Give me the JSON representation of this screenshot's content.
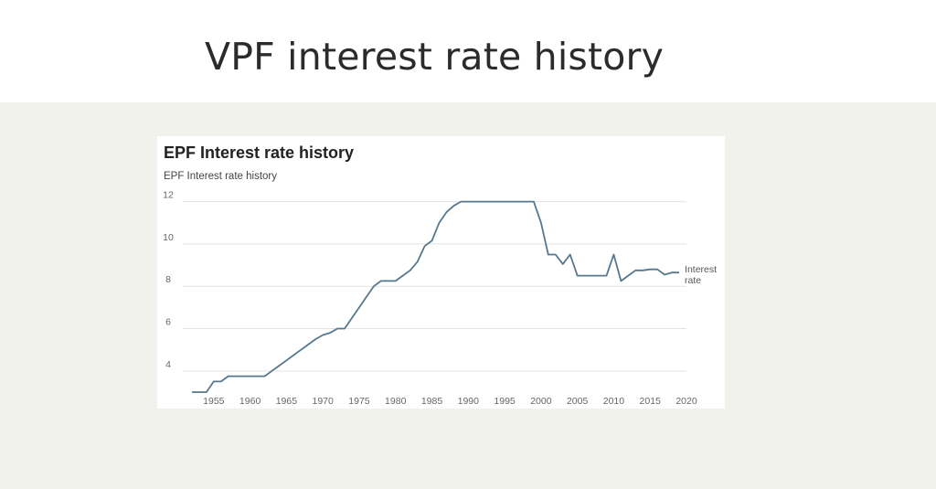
{
  "page": {
    "title": "VPF interest rate history"
  },
  "colors": {
    "line": "#56788e",
    "grid": "#e3e3e3",
    "lower_background": "#f2f2ec"
  },
  "chart_data": {
    "type": "line",
    "title": "EPF Interest rate history",
    "subtitle": "EPF Interest rate history",
    "xlabel": "",
    "ylabel": "",
    "xlim": [
      1951,
      2020
    ],
    "ylim": [
      3,
      12.5
    ],
    "x_ticks": [
      "1955",
      "1960",
      "1965",
      "1970",
      "1975",
      "1980",
      "1985",
      "1990",
      "1995",
      "2000",
      "2005",
      "2010",
      "2015",
      "2020"
    ],
    "y_ticks": [
      "4",
      "6",
      "8",
      "10",
      "12"
    ],
    "grid": true,
    "legend_placement": "end-of-line",
    "series": [
      {
        "name": "Interest rate",
        "x": [
          1952,
          1954,
          1955,
          1956,
          1957,
          1958,
          1959,
          1960,
          1961,
          1962,
          1963,
          1964,
          1965,
          1966,
          1967,
          1968,
          1969,
          1970,
          1971,
          1972,
          1973,
          1974,
          1975,
          1976,
          1977,
          1978,
          1979,
          1980,
          1981,
          1982,
          1983,
          1984,
          1985,
          1986,
          1987,
          1988,
          1989,
          1990,
          1991,
          1992,
          1993,
          1994,
          1995,
          1996,
          1997,
          1998,
          1999,
          2000,
          2001,
          2002,
          2003,
          2004,
          2005,
          2006,
          2007,
          2008,
          2009,
          2010,
          2011,
          2012,
          2013,
          2014,
          2015,
          2016,
          2017,
          2018,
          2019
        ],
        "values": [
          3,
          3,
          3.5,
          3.5,
          3.75,
          3.75,
          3.75,
          3.75,
          3.75,
          3.75,
          4,
          4.25,
          4.5,
          4.75,
          5,
          5.25,
          5.5,
          5.7,
          5.8,
          6,
          6,
          6.5,
          7,
          7.5,
          8,
          8.25,
          8.25,
          8.25,
          8.5,
          8.75,
          9.15,
          9.9,
          10.15,
          11,
          11.5,
          11.8,
          12,
          12,
          12,
          12,
          12,
          12,
          12,
          12,
          12,
          12,
          12,
          11,
          9.5,
          9.5,
          9.05,
          9.5,
          8.5,
          8.5,
          8.5,
          8.5,
          8.5,
          9.5,
          8.25,
          8.5,
          8.75,
          8.75,
          8.8,
          8.8,
          8.55,
          8.65,
          8.65
        ]
      }
    ]
  },
  "legend": {
    "line1": "Interest",
    "line2": "rate"
  }
}
